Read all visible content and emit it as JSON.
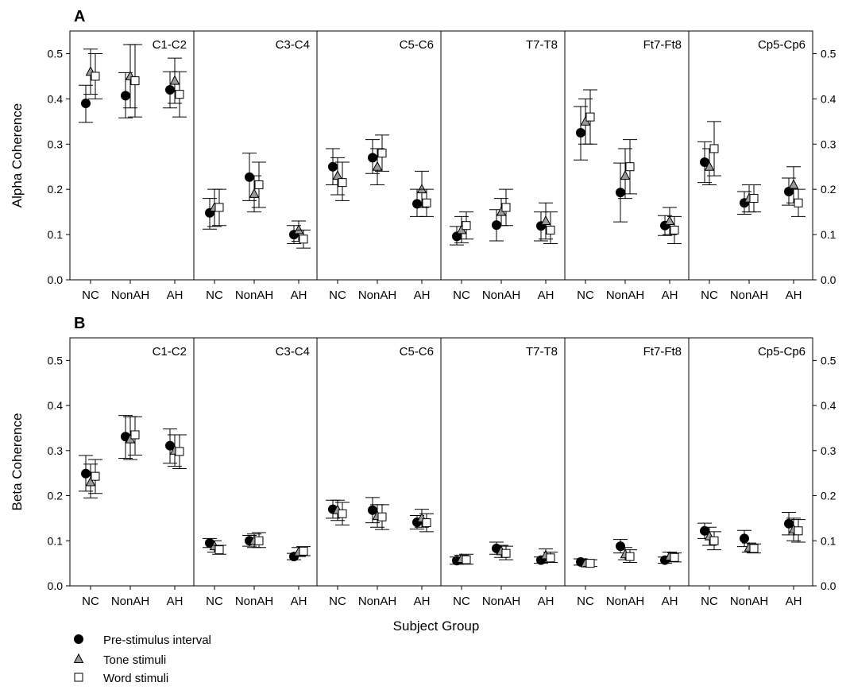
{
  "figure": {
    "x_axis_label": "Subject Group",
    "legend": [
      {
        "label": "Pre-stimulus interval",
        "marker": "circle"
      },
      {
        "label": "Tone stimuli",
        "marker": "triangle"
      },
      {
        "label": "Word stimuli",
        "marker": "square"
      }
    ]
  },
  "colors": {
    "pre": "#000000",
    "tone": "#9a9a9a",
    "word": "#ffffff",
    "ink": "#000000"
  },
  "chart_data": [
    {
      "type": "scatter",
      "panel_letter": "A",
      "ylabel": "Alpha Coherence",
      "ylim": [
        0,
        0.55
      ],
      "yticks": [
        "0.0",
        "0.1",
        "0.2",
        "0.3",
        "0.4",
        "0.5"
      ],
      "categories": [
        "NC",
        "NonAH",
        "AH"
      ],
      "subplots": [
        {
          "title": "C1-C2",
          "series": [
            {
              "name": "Pre-stimulus interval",
              "values": [
                0.39,
                0.407,
                0.42
              ],
              "err_low": [
                0.348,
                0.358,
                0.38
              ],
              "err_high": [
                0.43,
                0.458,
                0.46
              ]
            },
            {
              "name": "Tone stimuli",
              "values": [
                0.46,
                0.45,
                0.44
              ],
              "err_low": [
                0.41,
                0.38,
                0.39
              ],
              "err_high": [
                0.51,
                0.52,
                0.49
              ]
            },
            {
              "name": "Word stimuli",
              "values": [
                0.45,
                0.44,
                0.41
              ],
              "err_low": [
                0.4,
                0.36,
                0.36
              ],
              "err_high": [
                0.5,
                0.52,
                0.46
              ]
            }
          ]
        },
        {
          "title": "C3-C4",
          "series": [
            {
              "name": "Pre-stimulus interval",
              "values": [
                0.148,
                0.227,
                0.1
              ],
              "err_low": [
                0.112,
                0.175,
                0.08
              ],
              "err_high": [
                0.18,
                0.28,
                0.12
              ]
            },
            {
              "name": "Tone stimuli",
              "values": [
                0.16,
                0.19,
                0.11
              ],
              "err_low": [
                0.118,
                0.15,
                0.085
              ],
              "err_high": [
                0.2,
                0.23,
                0.13
              ]
            },
            {
              "name": "Word stimuli",
              "values": [
                0.16,
                0.21,
                0.09
              ],
              "err_low": [
                0.12,
                0.16,
                0.07
              ],
              "err_high": [
                0.2,
                0.26,
                0.11
              ]
            }
          ]
        },
        {
          "title": "C5-C6",
          "series": [
            {
              "name": "Pre-stimulus interval",
              "values": [
                0.25,
                0.27,
                0.168
              ],
              "err_low": [
                0.21,
                0.235,
                0.14
              ],
              "err_high": [
                0.29,
                0.31,
                0.2
              ]
            },
            {
              "name": "Tone stimuli",
              "values": [
                0.23,
                0.25,
                0.2
              ],
              "err_low": [
                0.188,
                0.21,
                0.16
              ],
              "err_high": [
                0.27,
                0.29,
                0.24
              ]
            },
            {
              "name": "Word stimuli",
              "values": [
                0.215,
                0.28,
                0.17
              ],
              "err_low": [
                0.175,
                0.24,
                0.14
              ],
              "err_high": [
                0.26,
                0.32,
                0.2
              ]
            }
          ]
        },
        {
          "title": "T7-T8",
          "series": [
            {
              "name": "Pre-stimulus interval",
              "values": [
                0.096,
                0.121,
                0.119
              ],
              "err_low": [
                0.077,
                0.086,
                0.086
              ],
              "err_high": [
                0.118,
                0.155,
                0.15
              ]
            },
            {
              "name": "Tone stimuli",
              "values": [
                0.11,
                0.15,
                0.13
              ],
              "err_low": [
                0.082,
                0.12,
                0.09
              ],
              "err_high": [
                0.14,
                0.18,
                0.17
              ]
            },
            {
              "name": "Word stimuli",
              "values": [
                0.12,
                0.16,
                0.11
              ],
              "err_low": [
                0.09,
                0.12,
                0.08
              ],
              "err_high": [
                0.15,
                0.2,
                0.15
              ]
            }
          ]
        },
        {
          "title": "Ft7-Ft8",
          "series": [
            {
              "name": "Pre-stimulus interval",
              "values": [
                0.325,
                0.193,
                0.12
              ],
              "err_low": [
                0.265,
                0.128,
                0.098
              ],
              "err_high": [
                0.383,
                0.258,
                0.142
              ]
            },
            {
              "name": "Tone stimuli",
              "values": [
                0.35,
                0.23,
                0.13
              ],
              "err_low": [
                0.3,
                0.18,
                0.1
              ],
              "err_high": [
                0.4,
                0.29,
                0.16
              ]
            },
            {
              "name": "Word stimuli",
              "values": [
                0.36,
                0.25,
                0.11
              ],
              "err_low": [
                0.3,
                0.19,
                0.08
              ],
              "err_high": [
                0.42,
                0.31,
                0.14
              ]
            }
          ]
        },
        {
          "title": "Cp5-Cp6",
          "series": [
            {
              "name": "Pre-stimulus interval",
              "values": [
                0.26,
                0.17,
                0.195
              ],
              "err_low": [
                0.215,
                0.145,
                0.165
              ],
              "err_high": [
                0.305,
                0.195,
                0.225
              ]
            },
            {
              "name": "Tone stimuli",
              "values": [
                0.25,
                0.18,
                0.21
              ],
              "err_low": [
                0.21,
                0.15,
                0.17
              ],
              "err_high": [
                0.29,
                0.21,
                0.25
              ]
            },
            {
              "name": "Word stimuli",
              "values": [
                0.29,
                0.18,
                0.17
              ],
              "err_low": [
                0.23,
                0.15,
                0.14
              ],
              "err_high": [
                0.35,
                0.21,
                0.2
              ]
            }
          ]
        }
      ]
    },
    {
      "type": "scatter",
      "panel_letter": "B",
      "ylabel": "Beta Coherence",
      "ylim": [
        0,
        0.55
      ],
      "yticks": [
        "0.0",
        "0.1",
        "0.2",
        "0.3",
        "0.4",
        "0.5"
      ],
      "categories": [
        "NC",
        "NonAH",
        "AH"
      ],
      "subplots": [
        {
          "title": "C1-C2",
          "series": [
            {
              "name": "Pre-stimulus interval",
              "values": [
                0.249,
                0.331,
                0.311
              ],
              "err_low": [
                0.21,
                0.283,
                0.272
              ],
              "err_high": [
                0.289,
                0.378,
                0.348
              ]
            },
            {
              "name": "Tone stimuli",
              "values": [
                0.23,
                0.325,
                0.3
              ],
              "err_low": [
                0.195,
                0.28,
                0.265
              ],
              "err_high": [
                0.27,
                0.375,
                0.335
              ]
            },
            {
              "name": "Word stimuli",
              "values": [
                0.243,
                0.335,
                0.298
              ],
              "err_low": [
                0.205,
                0.29,
                0.26
              ],
              "err_high": [
                0.28,
                0.375,
                0.335
              ]
            }
          ]
        },
        {
          "title": "C3-C4",
          "series": [
            {
              "name": "Pre-stimulus interval",
              "values": [
                0.095,
                0.1,
                0.065
              ],
              "err_low": [
                0.085,
                0.088,
                0.058
              ],
              "err_high": [
                0.105,
                0.112,
                0.072
              ]
            },
            {
              "name": "Tone stimuli",
              "values": [
                0.088,
                0.1,
                0.075
              ],
              "err_low": [
                0.075,
                0.085,
                0.065
              ],
              "err_high": [
                0.1,
                0.115,
                0.085
              ]
            },
            {
              "name": "Word stimuli",
              "values": [
                0.08,
                0.1,
                0.077
              ],
              "err_low": [
                0.07,
                0.085,
                0.067
              ],
              "err_high": [
                0.09,
                0.118,
                0.087
              ]
            }
          ]
        },
        {
          "title": "C5-C6",
          "series": [
            {
              "name": "Pre-stimulus interval",
              "values": [
                0.17,
                0.168,
                0.141
              ],
              "err_low": [
                0.15,
                0.14,
                0.126
              ],
              "err_high": [
                0.19,
                0.196,
                0.156
              ]
            },
            {
              "name": "Tone stimuli",
              "values": [
                0.168,
                0.155,
                0.15
              ],
              "err_low": [
                0.145,
                0.13,
                0.13
              ],
              "err_high": [
                0.19,
                0.18,
                0.17
              ]
            },
            {
              "name": "Word stimuli",
              "values": [
                0.16,
                0.153,
                0.14
              ],
              "err_low": [
                0.135,
                0.125,
                0.12
              ],
              "err_high": [
                0.185,
                0.18,
                0.16
              ]
            }
          ]
        },
        {
          "title": "T7-T8",
          "series": [
            {
              "name": "Pre-stimulus interval",
              "values": [
                0.056,
                0.083,
                0.057
              ],
              "err_low": [
                0.048,
                0.07,
                0.05
              ],
              "err_high": [
                0.064,
                0.097,
                0.064
              ]
            },
            {
              "name": "Tone stimuli",
              "values": [
                0.06,
                0.077,
                0.068
              ],
              "err_low": [
                0.05,
                0.063,
                0.055
              ],
              "err_high": [
                0.068,
                0.09,
                0.082
              ]
            },
            {
              "name": "Word stimuli",
              "values": [
                0.058,
                0.072,
                0.062
              ],
              "err_low": [
                0.048,
                0.058,
                0.052
              ],
              "err_high": [
                0.07,
                0.088,
                0.075
              ]
            }
          ]
        },
        {
          "title": "Ft7-Ft8",
          "series": [
            {
              "name": "Pre-stimulus interval",
              "values": [
                0.053,
                0.088,
                0.057
              ],
              "err_low": [
                0.046,
                0.073,
                0.05
              ],
              "err_high": [
                0.06,
                0.103,
                0.064
              ]
            },
            {
              "name": "Tone stimuli",
              "values": [
                0.05,
                0.07,
                0.065
              ],
              "err_low": [
                0.045,
                0.058,
                0.055
              ],
              "err_high": [
                0.058,
                0.085,
                0.075
              ]
            },
            {
              "name": "Word stimuli",
              "values": [
                0.05,
                0.065,
                0.063
              ],
              "err_low": [
                0.043,
                0.052,
                0.053
              ],
              "err_high": [
                0.058,
                0.08,
                0.073
              ]
            }
          ]
        },
        {
          "title": "Cp5-Cp6",
          "series": [
            {
              "name": "Pre-stimulus interval",
              "values": [
                0.122,
                0.105,
                0.138
              ],
              "err_low": [
                0.105,
                0.087,
                0.113
              ],
              "err_high": [
                0.139,
                0.123,
                0.163
              ]
            },
            {
              "name": "Tone stimuli",
              "values": [
                0.11,
                0.085,
                0.125
              ],
              "err_low": [
                0.09,
                0.075,
                0.1
              ],
              "err_high": [
                0.13,
                0.095,
                0.15
              ]
            },
            {
              "name": "Word stimuli",
              "values": [
                0.1,
                0.083,
                0.122
              ],
              "err_low": [
                0.08,
                0.073,
                0.097
              ],
              "err_high": [
                0.12,
                0.093,
                0.147
              ]
            }
          ]
        }
      ]
    }
  ]
}
